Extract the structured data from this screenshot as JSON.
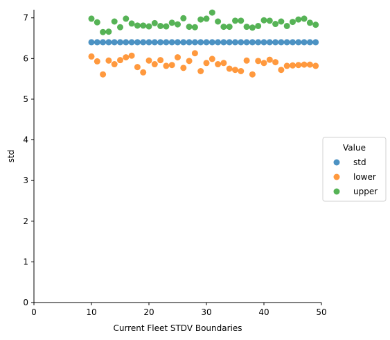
{
  "chart_data": {
    "type": "scatter",
    "xlabel": "Current Fleet STDV Boundaries",
    "ylabel": "std",
    "xlim": [
      0,
      50
    ],
    "ylim": [
      0,
      7.2
    ],
    "xticks": [
      0,
      10,
      20,
      30,
      40,
      50
    ],
    "yticks": [
      0,
      1,
      2,
      3,
      4,
      5,
      6,
      7
    ],
    "x": [
      10,
      11,
      12,
      13,
      14,
      15,
      16,
      17,
      18,
      19,
      20,
      21,
      22,
      23,
      24,
      25,
      26,
      27,
      28,
      29,
      30,
      31,
      32,
      33,
      34,
      35,
      36,
      37,
      38,
      39,
      40,
      41,
      42,
      43,
      44,
      45,
      46,
      47,
      48,
      49
    ],
    "legend": {
      "title": "Value",
      "position": "center-right"
    },
    "series": [
      {
        "name": "std",
        "color": "#1f77b4",
        "values": [
          6.4,
          6.4,
          6.4,
          6.4,
          6.4,
          6.4,
          6.4,
          6.4,
          6.4,
          6.4,
          6.4,
          6.4,
          6.4,
          6.4,
          6.4,
          6.4,
          6.4,
          6.4,
          6.4,
          6.4,
          6.4,
          6.4,
          6.4,
          6.4,
          6.4,
          6.4,
          6.4,
          6.4,
          6.4,
          6.4,
          6.4,
          6.4,
          6.4,
          6.4,
          6.4,
          6.4,
          6.4,
          6.4,
          6.4,
          6.4
        ]
      },
      {
        "name": "lower",
        "color": "#ff7f0e",
        "values": [
          6.05,
          5.93,
          5.61,
          5.95,
          5.86,
          5.96,
          6.03,
          6.07,
          5.79,
          5.66,
          5.95,
          5.86,
          5.96,
          5.82,
          5.84,
          6.03,
          5.77,
          5.94,
          6.13,
          5.69,
          5.89,
          5.99,
          5.86,
          5.89,
          5.75,
          5.72,
          5.69,
          5.95,
          5.61,
          5.94,
          5.89,
          5.97,
          5.91,
          5.72,
          5.82,
          5.83,
          5.84,
          5.85,
          5.85,
          5.82
        ]
      },
      {
        "name": "upper",
        "color": "#2ca02c",
        "values": [
          6.98,
          6.89,
          6.65,
          6.66,
          6.91,
          6.77,
          6.98,
          6.86,
          6.81,
          6.81,
          6.79,
          6.87,
          6.8,
          6.79,
          6.88,
          6.84,
          6.99,
          6.78,
          6.77,
          6.96,
          6.98,
          7.13,
          6.91,
          6.78,
          6.78,
          6.93,
          6.93,
          6.78,
          6.76,
          6.8,
          6.94,
          6.93,
          6.85,
          6.91,
          6.8,
          6.9,
          6.96,
          6.98,
          6.88,
          6.83
        ]
      }
    ]
  }
}
